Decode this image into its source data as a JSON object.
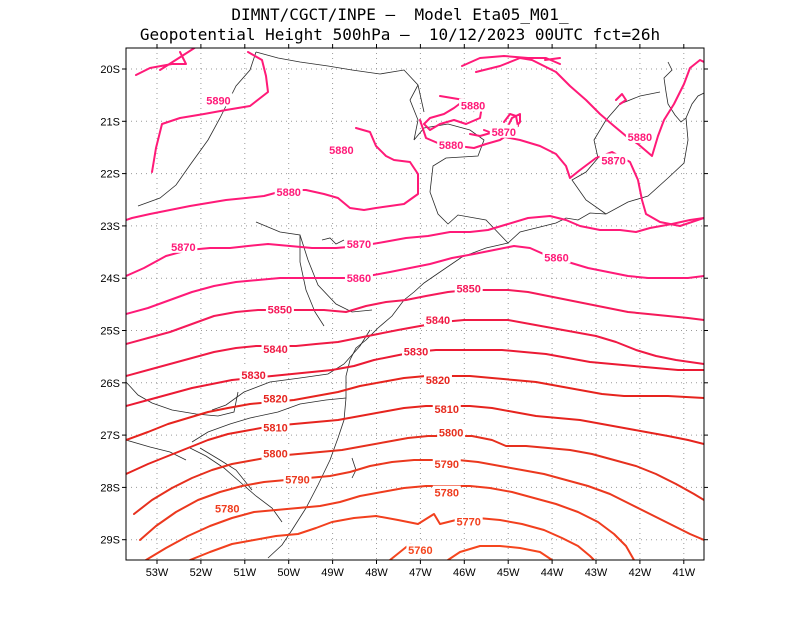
{
  "header": {
    "line1": "DIMNT/CGCT/INPE –  Model Eta05_M01_",
    "line2": "Geopotential Height 500hPa –  10/12/2023 00UTC fct=26h"
  },
  "axes": {
    "lat_labels": [
      "20S",
      "21S",
      "22S",
      "23S",
      "24S",
      "25S",
      "26S",
      "27S",
      "28S",
      "29S"
    ],
    "lon_labels": [
      "53W",
      "52W",
      "51W",
      "50W",
      "49W",
      "48W",
      "47W",
      "46W",
      "45W",
      "44W",
      "43W",
      "42W",
      "41W"
    ]
  },
  "contour_labels": [
    {
      "text": "5890",
      "lon": -51.6,
      "lat": -20.6,
      "color": "#ff1a78"
    },
    {
      "text": "5880",
      "lon": -45.8,
      "lat": -20.7,
      "color": "#ff1a78"
    },
    {
      "text": "5880",
      "lon": -48.8,
      "lat": -21.55,
      "color": "#ff1a78"
    },
    {
      "text": "5880",
      "lon": -46.3,
      "lat": -21.45,
      "color": "#ff1a78"
    },
    {
      "text": "5870",
      "lon": -45.1,
      "lat": -21.2,
      "color": "#ff1a78"
    },
    {
      "text": "5880",
      "lon": -42.0,
      "lat": -21.3,
      "color": "#ff1a78"
    },
    {
      "text": "5870",
      "lon": -42.6,
      "lat": -21.75,
      "color": "#ff1a78"
    },
    {
      "text": "5880",
      "lon": -50.0,
      "lat": -22.35,
      "color": "#ff1a78"
    },
    {
      "text": "5870",
      "lon": -52.4,
      "lat": -23.4,
      "color": "#ff1a78"
    },
    {
      "text": "5870",
      "lon": -48.4,
      "lat": -23.35,
      "color": "#ff1a78"
    },
    {
      "text": "5860",
      "lon": -43.9,
      "lat": -23.6,
      "color": "#ff1a78"
    },
    {
      "text": "5860",
      "lon": -48.4,
      "lat": -24.0,
      "color": "#ff1a78"
    },
    {
      "text": "5850",
      "lon": -45.9,
      "lat": -24.2,
      "color": "#f51a5a"
    },
    {
      "text": "5850",
      "lon": -50.2,
      "lat": -24.6,
      "color": "#f51a5a"
    },
    {
      "text": "5840",
      "lon": -46.6,
      "lat": -24.8,
      "color": "#f01a44"
    },
    {
      "text": "5840",
      "lon": -50.3,
      "lat": -25.35,
      "color": "#f01a44"
    },
    {
      "text": "5830",
      "lon": -47.1,
      "lat": -25.4,
      "color": "#eb1a33"
    },
    {
      "text": "5830",
      "lon": -50.8,
      "lat": -25.85,
      "color": "#eb1a33"
    },
    {
      "text": "5820",
      "lon": -46.6,
      "lat": -25.95,
      "color": "#e6241e"
    },
    {
      "text": "5820",
      "lon": -50.3,
      "lat": -26.3,
      "color": "#e6241e"
    },
    {
      "text": "5810",
      "lon": -46.4,
      "lat": -26.5,
      "color": "#e62a1e"
    },
    {
      "text": "5810",
      "lon": -50.3,
      "lat": -26.85,
      "color": "#e62a1e"
    },
    {
      "text": "5800",
      "lon": -46.3,
      "lat": -26.95,
      "color": "#e6301e"
    },
    {
      "text": "5800",
      "lon": -50.3,
      "lat": -27.35,
      "color": "#e6301e"
    },
    {
      "text": "5790",
      "lon": -46.4,
      "lat": -27.55,
      "color": "#eb381e"
    },
    {
      "text": "5790",
      "lon": -49.8,
      "lat": -27.85,
      "color": "#eb381e"
    },
    {
      "text": "5780",
      "lon": -46.4,
      "lat": -28.1,
      "color": "#ef3c1e"
    },
    {
      "text": "5780",
      "lon": -51.4,
      "lat": -28.4,
      "color": "#ef3c1e"
    },
    {
      "text": "5770",
      "lon": -45.9,
      "lat": -28.65,
      "color": "#f2401e"
    },
    {
      "text": "5760",
      "lon": -47.0,
      "lat": -29.2,
      "color": "#f5461e"
    }
  ]
}
